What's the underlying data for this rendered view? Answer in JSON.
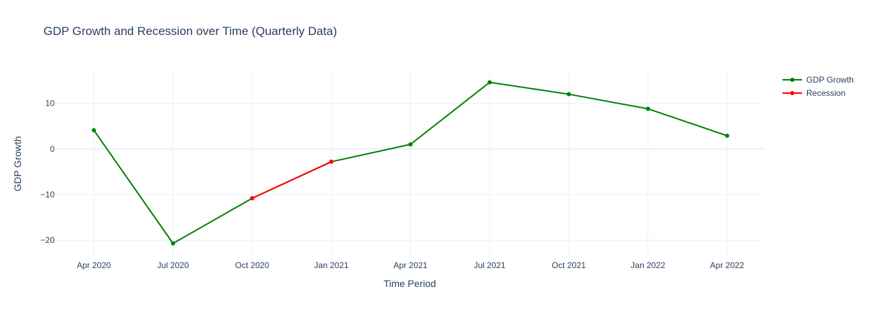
{
  "chart_data": {
    "type": "line",
    "title": "GDP Growth and Recession over Time (Quarterly Data)",
    "xlabel": "Time Period",
    "ylabel": "GDP Growth",
    "x_tick_labels": [
      "Apr 2020",
      "Jul 2020",
      "Oct 2020",
      "Jan 2021",
      "Apr 2021",
      "Jul 2021",
      "Oct 2021",
      "Jan 2022",
      "Apr 2022"
    ],
    "y_ticks": [
      10,
      0,
      -10,
      -20
    ],
    "y_tick_labels": [
      "10",
      "0",
      "−10",
      "−20"
    ],
    "ylim": [
      -23.5,
      17.3
    ],
    "grid": true,
    "legend_position": "top-right",
    "series": [
      {
        "name": "GDP Growth",
        "color": "#008000",
        "x": [
          "Apr 2020",
          "Jul 2020",
          "Oct 2020",
          "Jan 2021",
          "Apr 2021",
          "Jul 2021",
          "Oct 2021",
          "Jan 2022",
          "Apr 2022"
        ],
        "values": [
          4.1,
          -20.7,
          -10.8,
          -2.8,
          1.0,
          14.6,
          12.0,
          8.8,
          2.9
        ]
      },
      {
        "name": "Recession",
        "color": "#ff0000",
        "x": [
          "Oct 2020",
          "Jan 2021"
        ],
        "values": [
          -10.8,
          -2.8
        ]
      }
    ]
  }
}
